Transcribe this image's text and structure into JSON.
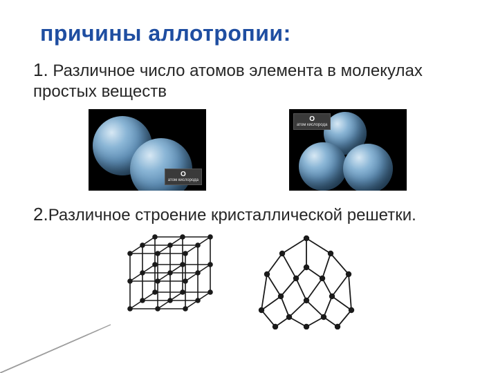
{
  "colors": {
    "title": "#1f4ea1",
    "body": "#262626",
    "mol_bg": "#000000",
    "sphere_center": "#8bb6d6",
    "sphere_edge": "#2a4f70",
    "lattice_stroke": "#1a1a1a",
    "lattice_node": "#1a1a1a",
    "wedge_light": "#d9d9d9",
    "wedge_dark": "#9e9e9e"
  },
  "typography": {
    "title_fontsize": 32,
    "body_fontsize": 24,
    "title_weight": 700
  },
  "title": "причины   аллотропии:",
  "point1": {
    "number": "1.",
    "text": "Различное число атомов элемента в молекулах простых веществ"
  },
  "point2": {
    "number": "2.",
    "text": "Различное строение кристаллической решетки."
  },
  "molecule_left": {
    "type": "sphere-cluster",
    "atom_count": 2,
    "label_symbol": "O",
    "label_text": "атом кислорода"
  },
  "molecule_right": {
    "type": "sphere-cluster",
    "atom_count": 3,
    "label_symbol": "O",
    "label_text": "атом кислорода"
  },
  "lattice_left": {
    "type": "cubic-lattice",
    "nodes": 27,
    "node_color": "#1a1a1a",
    "edge_color": "#1a1a1a",
    "node_radius": 3.8,
    "stroke_width": 1.6
  },
  "lattice_right": {
    "type": "diamond-lattice",
    "nodes": 22,
    "node_color": "#1a1a1a",
    "edge_color": "#1a1a1a",
    "node_radius": 4.2,
    "stroke_width": 1.8
  }
}
